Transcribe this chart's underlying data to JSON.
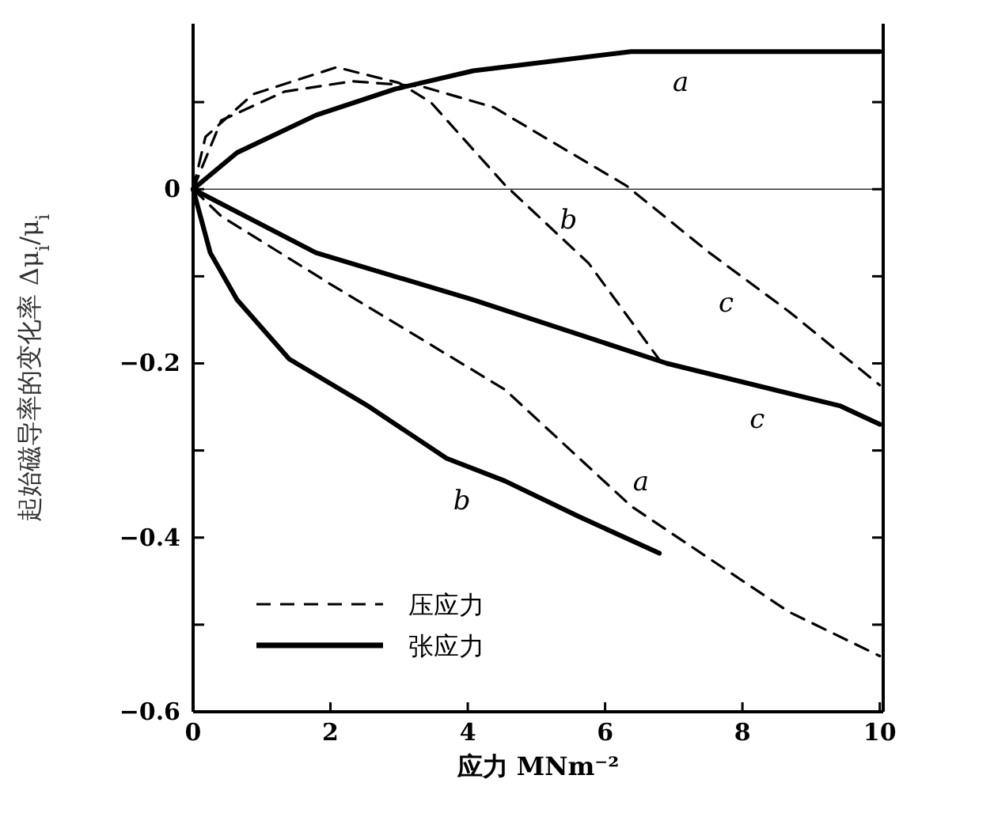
{
  "chart_data": {
    "type": "line",
    "xlabel": "应力 MNm⁻²",
    "ylabel": "起始磁导率的变化率 Δμ$_{i}$/μ$_{i}$",
    "xlim": [
      0,
      10.05
    ],
    "ylim": [
      -0.6,
      0.19
    ],
    "xticks": [
      0,
      2,
      4,
      6,
      8,
      10
    ],
    "yticks": [
      {
        "value": 0.1,
        "label": null
      },
      0,
      {
        "value": -0.1,
        "label": null
      },
      {
        "value": -0.2,
        "label": "−0.2"
      },
      {
        "value": -0.3,
        "label": null
      },
      {
        "value": -0.4,
        "label": "−0.4"
      },
      {
        "value": -0.5,
        "label": null
      },
      {
        "value": -0.6,
        "label": "−0.6"
      }
    ],
    "grid": false,
    "legend": "bottom left",
    "marker": "none",
    "ref_lines": [
      {
        "axis": "y",
        "value": 0,
        "line_style": "solid"
      }
    ],
    "series": [
      {
        "name": "张应力",
        "color": "#000000",
        "line_style": "solid",
        "x": [
          0,
          0.64,
          1.79,
          2.94,
          4.08,
          6.38,
          10
        ],
        "values": [
          0,
          0.042,
          0.085,
          0.115,
          0.136,
          0.158,
          0.158
        ]
      },
      {
        "name": "压应力",
        "color": "#000000",
        "line_style": "dashed",
        "x": [
          0,
          0.41,
          2,
          4.54,
          6.38,
          8.67,
          10
        ],
        "values": [
          0,
          -0.031,
          -0.109,
          -0.23,
          -0.364,
          -0.485,
          -0.536
        ]
      },
      {
        "color": "#000000",
        "line_style": "solid",
        "x": [
          0,
          0.25,
          0.64,
          1.4,
          2.55,
          3.69,
          4.54,
          5.62,
          6.79
        ],
        "values": [
          0,
          -0.073,
          -0.127,
          -0.195,
          -0.249,
          -0.309,
          -0.335,
          -0.376,
          -0.418
        ]
      },
      {
        "color": "#000000",
        "line_style": "dashed",
        "x": [
          0,
          0.18,
          0.87,
          2.09,
          3.0,
          3.46,
          4.54,
          5.76,
          6.83
        ],
        "values": [
          0,
          0.06,
          0.109,
          0.14,
          0.122,
          0.1,
          0.005,
          -0.085,
          -0.2
        ]
      },
      {
        "color": "#000000",
        "line_style": "solid",
        "x": [
          0,
          1.79,
          4.08,
          6.9,
          9.43,
          10
        ],
        "values": [
          0,
          -0.073,
          -0.127,
          -0.2,
          -0.249,
          -0.27
        ]
      },
      {
        "color": "#000000",
        "line_style": "dashed",
        "x": [
          0,
          0.41,
          1.33,
          2.32,
          3.33,
          4.38,
          6.31,
          7.52,
          8.67,
          10
        ],
        "values": [
          0,
          0.079,
          0.112,
          0.124,
          0.118,
          0.094,
          0.004,
          -0.073,
          -0.14,
          -0.225
        ]
      }
    ],
    "annotations": [
      "a",
      "a",
      "b",
      "b",
      "c",
      "c"
    ]
  }
}
